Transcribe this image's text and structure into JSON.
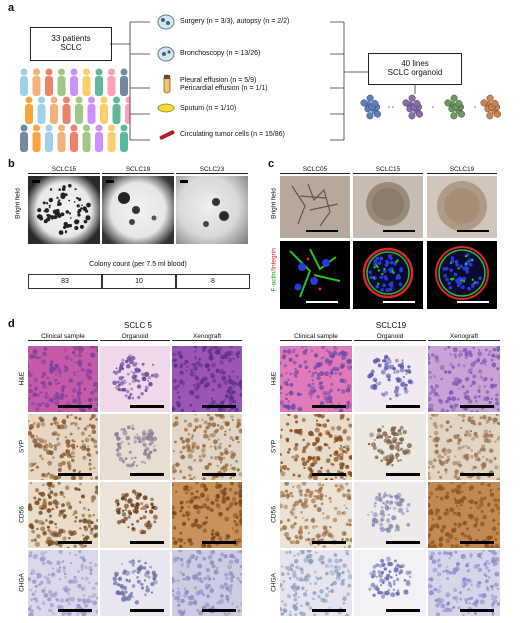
{
  "panels": {
    "a": "a",
    "b": "b",
    "c": "c",
    "d": "d"
  },
  "panel_a": {
    "patients_line1": "33 patients",
    "patients_line2": "SCLC",
    "sources": [
      {
        "text": "Surgery (n = 3/3), autopsy (n = 2/2)",
        "icon": "tissue-icon"
      },
      {
        "text": "Bronchoscopy (n = 13/26)",
        "icon": "tissue-icon"
      },
      {
        "text": "Pleural effusion (n = 5/9)",
        "icon": "tube-icon"
      },
      {
        "text": "Pericardial effusion (n = 1/1)",
        "icon": "tube-icon"
      },
      {
        "text": "Sputum (n = 1/10)",
        "icon": "sputum-icon"
      },
      {
        "text": "Circulating tumor cells (n = 15/86)",
        "icon": "blood-tube-icon"
      }
    ],
    "result_line1": "40 lines",
    "result_line2": "SCLC organoid",
    "colors": {
      "organoid1": "#5b7fc4",
      "organoid2": "#8a6bb0",
      "organoid3": "#6a9a5a",
      "organoid4": "#d4824a"
    }
  },
  "panel_b": {
    "columns": [
      "SCLC15",
      "SCLC19",
      "SCLC23"
    ],
    "row_label": "Bright field",
    "colony_title": "Colony count (per 7.5 ml blood)",
    "counts": [
      "83",
      "10",
      "8"
    ]
  },
  "panel_c": {
    "columns": [
      "SCLC05",
      "SCLC15",
      "SCLC19"
    ],
    "row1_label": "Bright field",
    "row2_label_a": "F-actin/",
    "row2_label_b": "Integrin",
    "colors": {
      "factin": "#22c222",
      "integrin": "#e0222a",
      "nuclei": "#2a3ad8"
    }
  },
  "panel_d": {
    "left_title": "SCLC 5",
    "right_title": "SCLC19",
    "columns": [
      "Clinical sample",
      "Organoid",
      "Xenograft"
    ],
    "rows": [
      "H&E",
      "SYP",
      "CD56",
      "CHGA"
    ]
  }
}
